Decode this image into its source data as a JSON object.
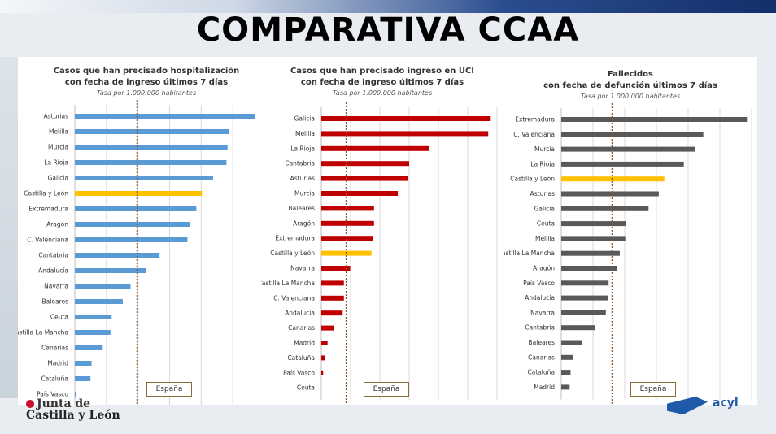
{
  "header": {
    "title": "COMPARATIVA CCAA"
  },
  "logo_left": {
    "line1": "Junta de",
    "line2": "Castilla y León"
  },
  "logo_right": {
    "text": "acyl"
  },
  "colors": {
    "hosp": "#5b9bd5",
    "uci": "#c00000",
    "fallecidos": "#595959",
    "highlight": "#ffc000",
    "reference": "#8b5a2b"
  },
  "chart_data": [
    {
      "type": "bar",
      "orientation": "horizontal",
      "title": "Casos que han precisado hospitalización\ncon fecha de ingreso últimos 7 días",
      "title_line1": "Casos que han precisado hospitalización",
      "title_line2": "con fecha de ingreso últimos 7 días",
      "subtitle": "Tasa por 1.000.000 habitantes",
      "categories": [
        "Asturias",
        "Melilla",
        "Murcia",
        "La Rioja",
        "Galicia",
        "Castilla y León",
        "Extremadura",
        "Aragón",
        "C. Valenciana",
        "Cantabria",
        "Andalucía",
        "Navarra",
        "Baleares",
        "Ceuta",
        "Castilla La Mancha",
        "Canarias",
        "Madrid",
        "Cataluña",
        "País Vasco"
      ],
      "values": [
        81,
        69,
        68.5,
        68,
        62,
        57,
        54.5,
        51.5,
        50.5,
        38,
        32,
        25,
        21.5,
        16.5,
        16,
        12.5,
        7.5,
        7,
        0.5
      ],
      "highlight": "Castilla y León",
      "reference": {
        "label": "España",
        "value": 28
      },
      "xlim": [
        0,
        85
      ],
      "grid": true
    },
    {
      "type": "bar",
      "orientation": "horizontal",
      "title_line1": "Casos que han precisado ingreso en UCI",
      "title_line2": "con fecha de ingreso últimos 7 días",
      "subtitle": "Tasa por 1.000.000 habitantes",
      "categories": [
        "Galicia",
        "Melilla",
        "La Rioja",
        "Cantabria",
        "Asturias",
        "Murcia",
        "Baleares",
        "Aragón",
        "Extremadura",
        "Castilla y León",
        "Navarra",
        "Castilla La Mancha",
        "C. Valenciana",
        "Andalucía",
        "Canarias",
        "Madrid",
        "Cataluña",
        "País Vasco",
        "Ceuta"
      ],
      "values": [
        13.5,
        13.3,
        8.6,
        7,
        6.9,
        6.1,
        4.2,
        4.2,
        4.1,
        4,
        2.3,
        1.8,
        1.8,
        1.7,
        1,
        0.5,
        0.3,
        0.15,
        0
      ],
      "highlight": "Castilla y León",
      "reference": {
        "label": "España",
        "value": 2
      },
      "xlim": [
        0,
        14
      ],
      "grid": true
    },
    {
      "type": "bar",
      "orientation": "horizontal",
      "title_line1": "Fallecidos",
      "title_line2": "con fecha de defunción últimos 7 días",
      "subtitle": "Tasa por 1.000.000 habitantes",
      "categories": [
        "Extremadura",
        "C. Valenciana",
        "Murcia",
        "La Rioja",
        "Castilla y León",
        "Asturias",
        "Galicia",
        "Ceuta",
        "Melilla",
        "Castilla La Mancha",
        "Aragón",
        "País Vasco",
        "Andalucía",
        "Navarra",
        "Cantabria",
        "Baleares",
        "Canarias",
        "Cataluña",
        "Madrid"
      ],
      "values": [
        20,
        15.3,
        14.4,
        13.2,
        11.1,
        10.5,
        9.4,
        7,
        6.9,
        6.3,
        6,
        5.1,
        5,
        4.8,
        3.6,
        2.2,
        1.3,
        1,
        0.9
      ],
      "highlight": "Castilla y León",
      "reference": {
        "label": "España",
        "value": 5.5
      },
      "xlim": [
        0,
        20.5
      ],
      "grid": true
    }
  ]
}
